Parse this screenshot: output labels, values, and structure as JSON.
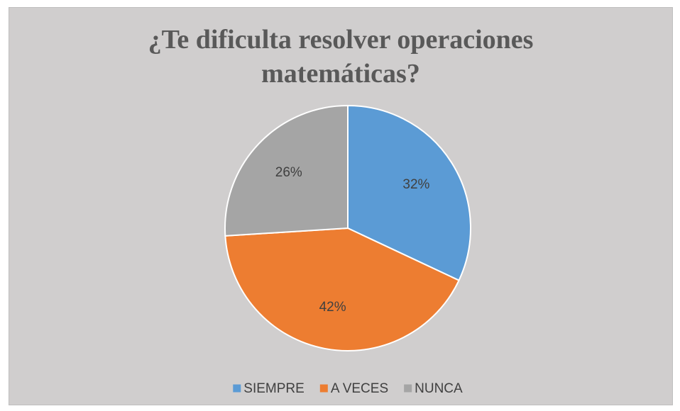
{
  "chart_data": {
    "type": "pie",
    "title": "¿Te dificulta resolver operaciones matemáticas?",
    "categories": [
      "SIEMPRE",
      "A VECES",
      "NUNCA"
    ],
    "values": [
      32,
      42,
      26
    ],
    "value_labels": [
      "32%",
      "42%",
      "26%"
    ],
    "colors": [
      "#5b9bd5",
      "#ed7d31",
      "#a5a5a5"
    ],
    "legend": "bottom"
  }
}
